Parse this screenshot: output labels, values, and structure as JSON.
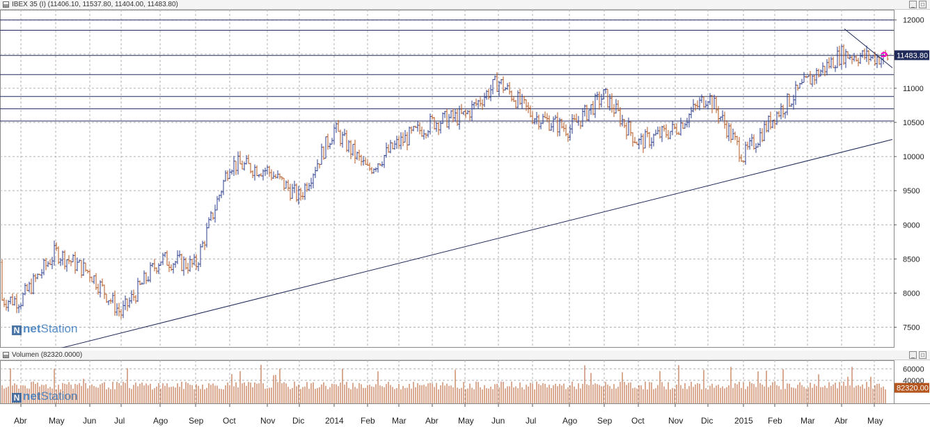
{
  "price_pane": {
    "title": "IBEX 35 (I) (11406.10, 11537.80, 11404.00, 11483.80)",
    "last_label": "11483.80",
    "y_ticks": [
      "12000",
      "11500",
      "11000",
      "10500",
      "10000",
      "9500",
      "9000",
      "8500",
      "8000",
      "7500"
    ]
  },
  "volume_pane": {
    "title": "Volumen (82320.0000)",
    "last_label": "82320.00",
    "y_ticks": [
      "60000",
      "40000"
    ]
  },
  "x_labels": [
    "Abr",
    "May",
    "Jun",
    "Jul",
    "Ago",
    "Sep",
    "Oct",
    "Nov",
    "Dic",
    "2014",
    "Feb",
    "Mar",
    "Abr",
    "May",
    "Jun",
    "Jul",
    "Ago",
    "Sep",
    "Oct",
    "Nov",
    "Dic",
    "2015",
    "Feb",
    "Mar",
    "Abr",
    "May"
  ],
  "logo": {
    "prefix": "net",
    "suffix": "Station",
    "badge": "N"
  },
  "window_buttons": {
    "minimize": "_",
    "maximize": "□"
  },
  "colors": {
    "up": "#2a3d8f",
    "down": "#b5561f",
    "volume": "#c0704a",
    "hline": "#1f2a5a",
    "grid": "#b0b0b0",
    "marker": "#ff00cc"
  },
  "chart_data": {
    "type": "bar",
    "subtype": "ohlc",
    "instrument": "IBEX 35 (I)",
    "last": {
      "open": 11406.1,
      "high": 11537.8,
      "low": 11404.0,
      "close": 11483.8
    },
    "ylim": [
      7200,
      12150
    ],
    "monthly_closes": {
      "x": [
        "Abr",
        "May",
        "Jun",
        "Jul",
        "Ago",
        "Sep",
        "Oct",
        "Nov",
        "Dic",
        "2014",
        "Feb",
        "Mar",
        "Abr",
        "May",
        "Jun",
        "Jul",
        "Ago",
        "Sep",
        "Oct",
        "Nov",
        "Dic",
        "2015",
        "Feb",
        "Mar",
        "Abr",
        "May"
      ],
      "values": [
        7900,
        8600,
        8300,
        7700,
        8500,
        8400,
        9900,
        9800,
        9400,
        10400,
        9800,
        10200,
        10500,
        10600,
        11100,
        10600,
        10400,
        10900,
        10200,
        10400,
        10900,
        10000,
        10600,
        11100,
        11500,
        11450
      ]
    },
    "horizontal_levels": [
      12000,
      11850,
      11480,
      11200,
      10880,
      10700,
      10520
    ],
    "trendlines": [
      {
        "from": [
          "May",
          7150
        ],
        "to": [
          "May",
          10250
        ]
      },
      {
        "from": [
          "Abr",
          11870
        ],
        "to": [
          "May",
          11300
        ]
      }
    ],
    "volume": {
      "ylim": [
        0,
        75000
      ],
      "last": 82320.0,
      "ticks": [
        60000,
        40000
      ]
    },
    "grid": true
  }
}
